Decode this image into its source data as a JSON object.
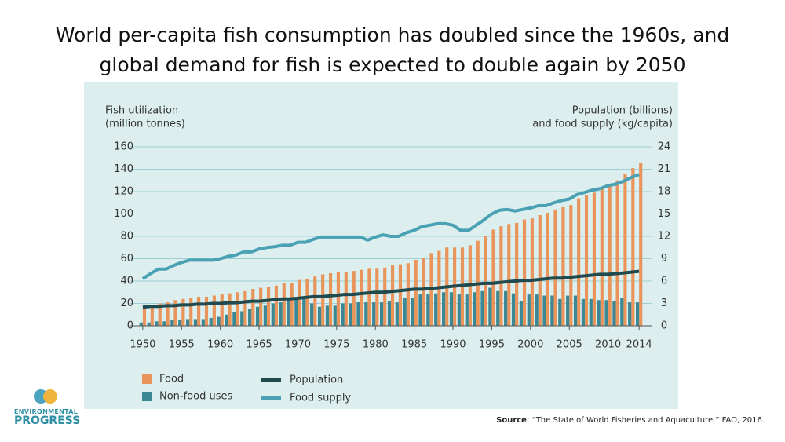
{
  "title": "World per-capita fish consumption has doubled since the 1960s, and global demand for fish is expected to double again by 2050",
  "chart_data": {
    "type": "bar",
    "ylabel": [
      "Fish utilization",
      "(million tonnes)"
    ],
    "y2label": [
      "Population (billions)",
      "and food supply (kg/capita)"
    ],
    "x": [
      1950,
      1951,
      1952,
      1953,
      1954,
      1955,
      1956,
      1957,
      1958,
      1959,
      1960,
      1961,
      1962,
      1963,
      1964,
      1965,
      1966,
      1967,
      1968,
      1969,
      1970,
      1971,
      1972,
      1973,
      1974,
      1975,
      1976,
      1977,
      1978,
      1979,
      1980,
      1981,
      1982,
      1983,
      1984,
      1985,
      1986,
      1987,
      1988,
      1989,
      1990,
      1991,
      1992,
      1993,
      1994,
      1995,
      1996,
      1997,
      1998,
      1999,
      2000,
      2001,
      2002,
      2003,
      2004,
      2005,
      2006,
      2007,
      2008,
      2009,
      2010,
      2011,
      2012,
      2013,
      2014
    ],
    "xlim": [
      1949,
      2015
    ],
    "xticks": [
      1950,
      1955,
      1960,
      1965,
      1970,
      1975,
      1980,
      1985,
      1990,
      1995,
      2000,
      2005,
      2010,
      2014
    ],
    "ylim": [
      0,
      160
    ],
    "yticks": [
      0,
      20,
      40,
      60,
      80,
      100,
      120,
      140,
      160
    ],
    "y2lim": [
      0,
      24
    ],
    "y2ticks": [
      0,
      3,
      6,
      9,
      12,
      15,
      18,
      21,
      24
    ],
    "grid": true,
    "series": [
      {
        "name": "Food",
        "type": "bar",
        "color": "#e8945a",
        "values": [
          17,
          18,
          20,
          21,
          23,
          24,
          25,
          26,
          26,
          27,
          28,
          29,
          30,
          31,
          33,
          34,
          35,
          36,
          38,
          38,
          41,
          42,
          44,
          46,
          47,
          48,
          48,
          49,
          50,
          51,
          51,
          52,
          54,
          55,
          56,
          59,
          61,
          65,
          67,
          70,
          70,
          70,
          72,
          76,
          80,
          86,
          89,
          91,
          92,
          95,
          96,
          99,
          101,
          104,
          106,
          108,
          114,
          117,
          119,
          123,
          127,
          130,
          136,
          141,
          146
        ]
      },
      {
        "name": "Non-food uses",
        "type": "bar",
        "color": "#3b8794",
        "values": [
          3,
          3,
          4,
          4,
          5,
          5,
          6,
          6,
          6,
          7,
          8,
          10,
          12,
          13,
          15,
          17,
          18,
          20,
          21,
          23,
          25,
          26,
          20,
          17,
          18,
          18,
          20,
          20,
          21,
          21,
          21,
          21,
          22,
          21,
          25,
          25,
          28,
          28,
          29,
          30,
          30,
          28,
          28,
          30,
          31,
          34,
          31,
          31,
          29,
          22,
          28,
          28,
          27,
          27,
          24,
          27,
          27,
          24,
          24,
          23,
          23,
          22,
          25,
          21,
          21
        ]
      },
      {
        "name": "Population",
        "type": "line",
        "axis": "y2",
        "color": "#1e4a50",
        "values": [
          2.5,
          2.6,
          2.6,
          2.7,
          2.7,
          2.8,
          2.8,
          2.9,
          2.9,
          3.0,
          3.0,
          3.1,
          3.1,
          3.2,
          3.3,
          3.3,
          3.4,
          3.5,
          3.6,
          3.6,
          3.7,
          3.8,
          3.9,
          3.9,
          4.0,
          4.1,
          4.2,
          4.2,
          4.3,
          4.4,
          4.5,
          4.5,
          4.6,
          4.7,
          4.8,
          4.9,
          4.9,
          5.0,
          5.1,
          5.2,
          5.3,
          5.4,
          5.5,
          5.6,
          5.7,
          5.7,
          5.8,
          5.9,
          6.0,
          6.1,
          6.1,
          6.2,
          6.3,
          6.4,
          6.4,
          6.5,
          6.6,
          6.7,
          6.8,
          6.9,
          6.9,
          7.0,
          7.1,
          7.2,
          7.3
        ]
      },
      {
        "name": "Food supply",
        "type": "line",
        "axis": "y2",
        "color": "#49a1b3",
        "values": [
          6.3,
          7.0,
          7.6,
          7.6,
          8.1,
          8.5,
          8.8,
          8.8,
          8.8,
          8.8,
          9.0,
          9.3,
          9.5,
          9.9,
          9.9,
          10.3,
          10.5,
          10.6,
          10.8,
          10.8,
          11.2,
          11.2,
          11.6,
          11.9,
          11.9,
          11.9,
          11.9,
          11.9,
          11.9,
          11.5,
          11.9,
          12.2,
          12.0,
          12.0,
          12.5,
          12.8,
          13.3,
          13.5,
          13.7,
          13.7,
          13.5,
          12.8,
          12.8,
          13.5,
          14.2,
          15.0,
          15.5,
          15.6,
          15.4,
          15.6,
          15.8,
          16.1,
          16.1,
          16.5,
          16.8,
          17.0,
          17.6,
          17.9,
          18.2,
          18.4,
          18.8,
          19.0,
          19.4,
          19.9,
          20.3
        ]
      }
    ]
  },
  "source_label": "Source",
  "source_text": ": “The State of World Fisheries and Aquaculture,” FAO, 2016.",
  "logo_text": [
    "ENVIRONMENTAL",
    "PROGRESS"
  ]
}
